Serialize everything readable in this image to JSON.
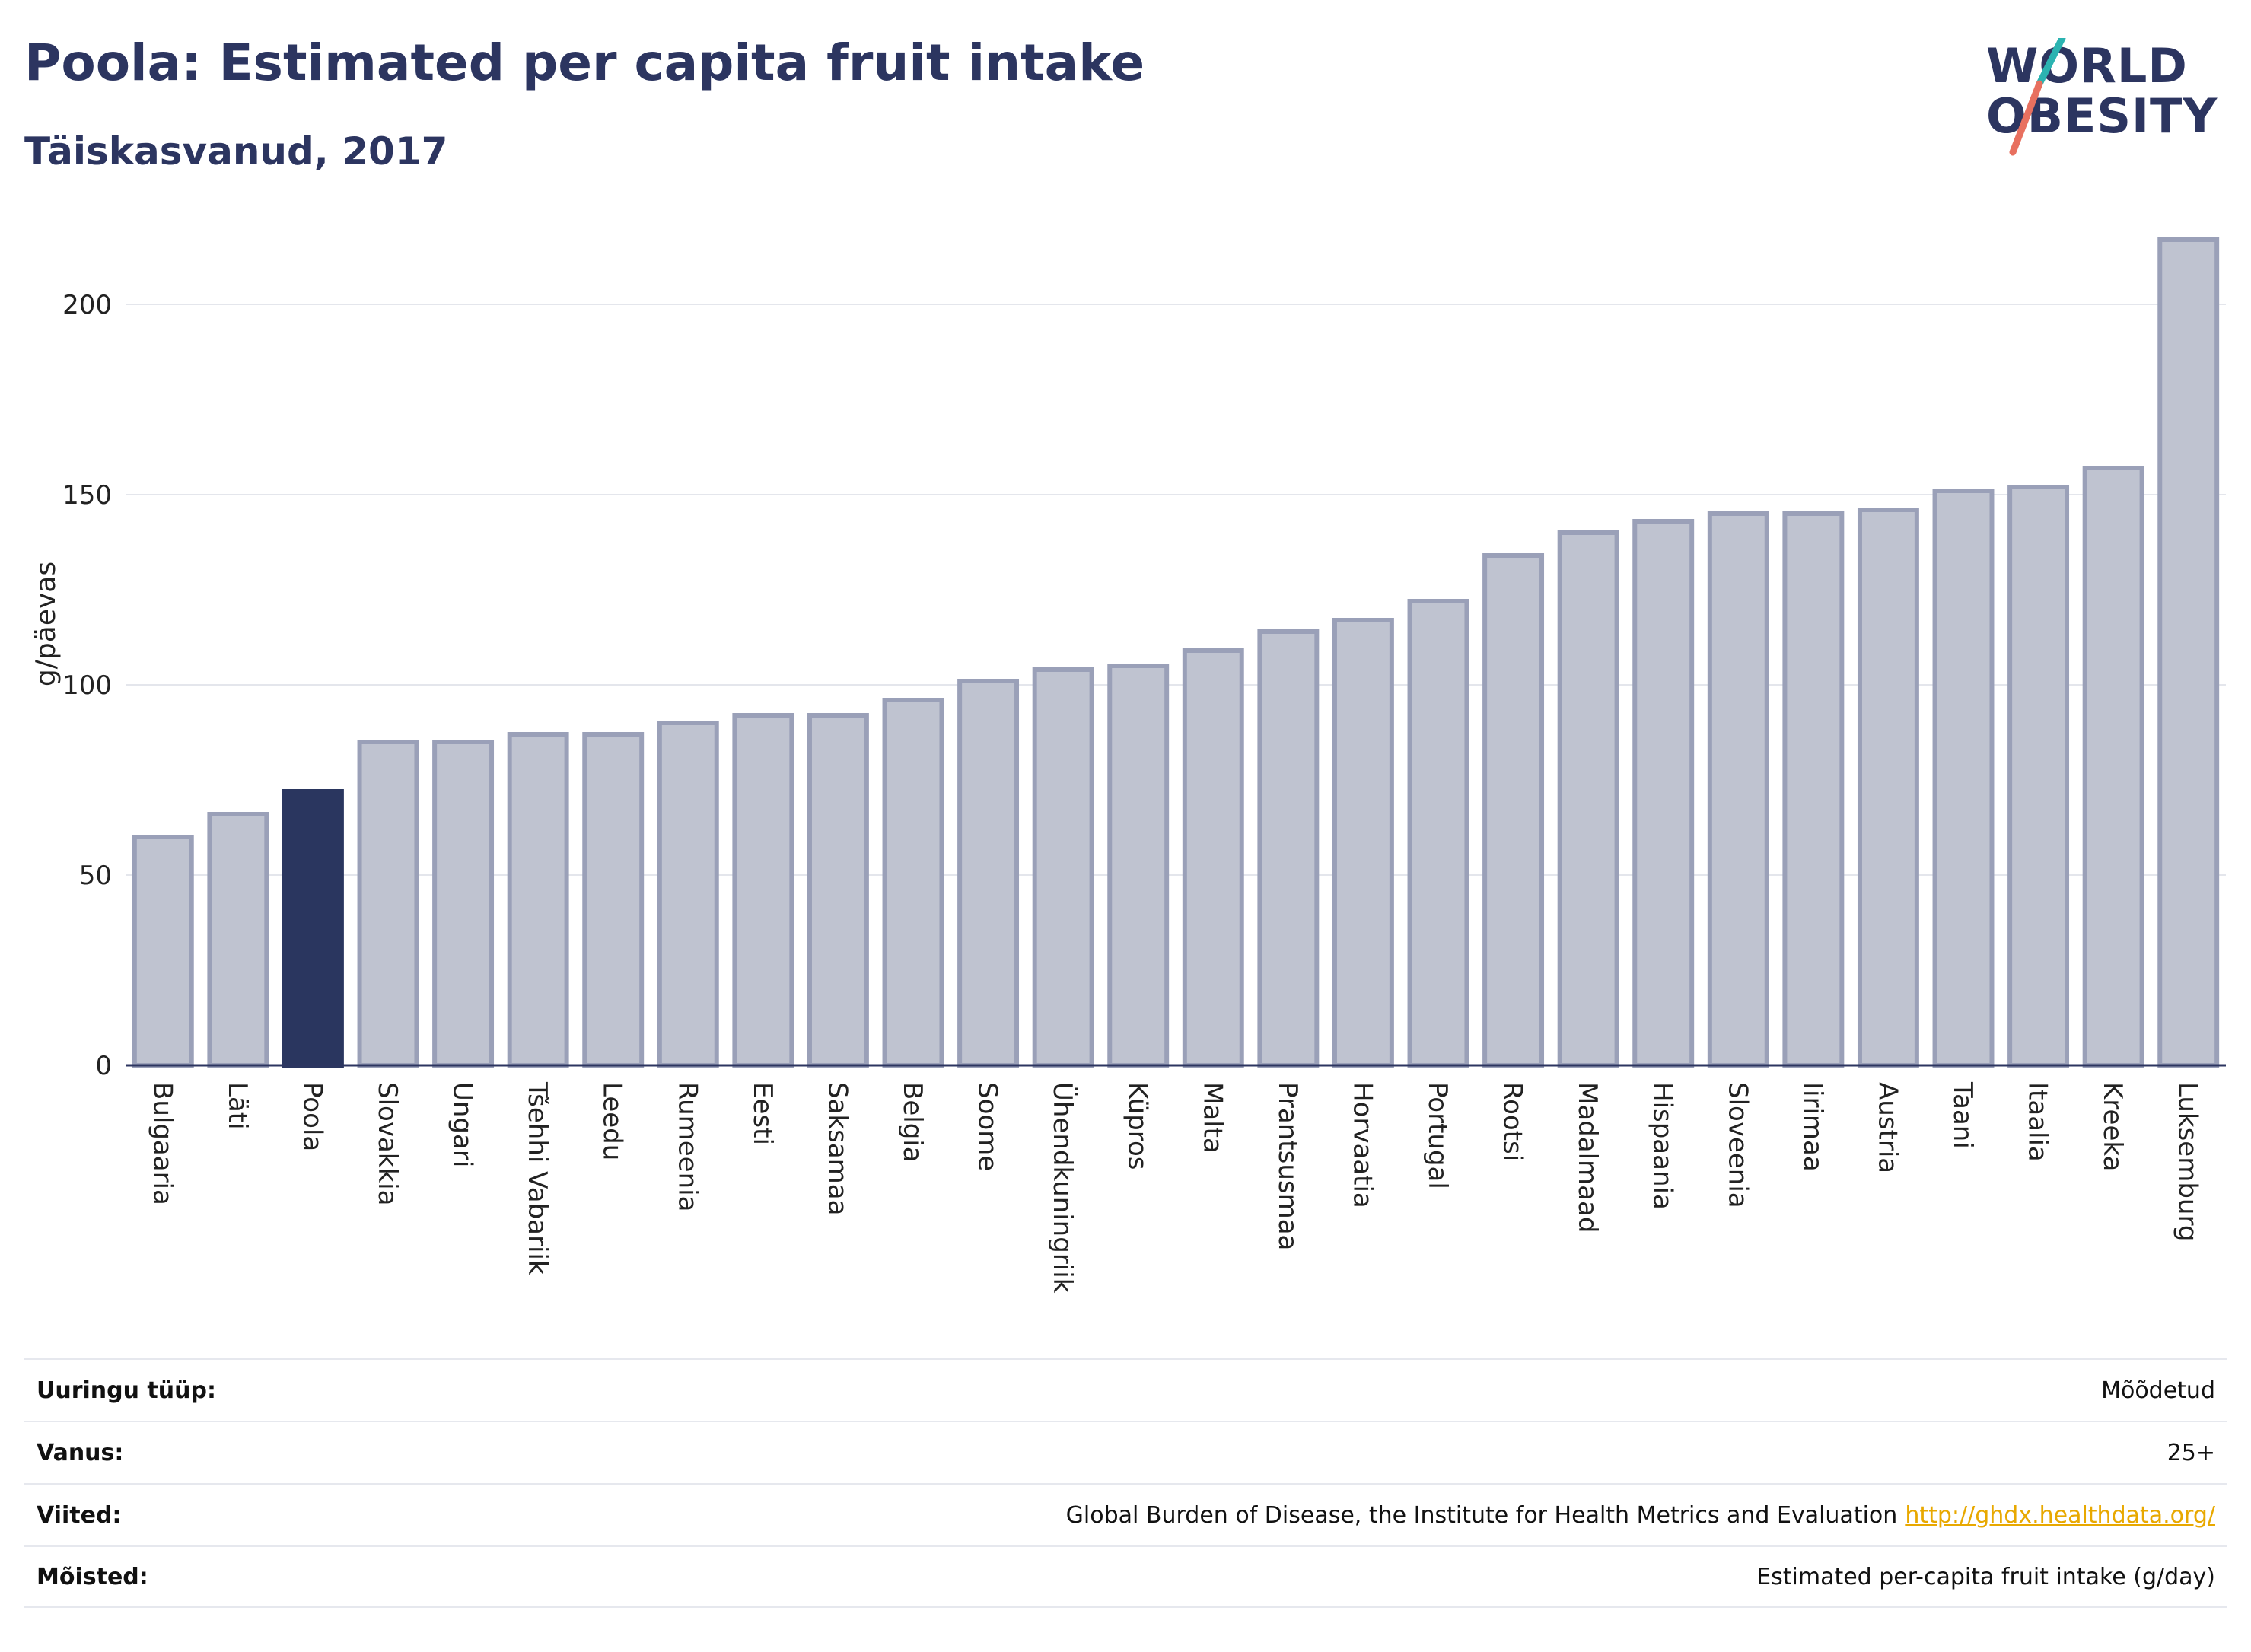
{
  "header": {
    "title": "Poola: Estimated per capita fruit intake",
    "subtitle": "Täiskasvanud, 2017"
  },
  "logo": {
    "line1": "WORLD",
    "line2": "OBESITY",
    "colors": {
      "text": "#2c3560",
      "slash_teal": "#2bb3b1",
      "slash_coral": "#e8705f"
    }
  },
  "chart_data": {
    "type": "bar",
    "ylabel": "g/päevas",
    "xlabel": "",
    "ylim": [
      0,
      220
    ],
    "yticks": [
      0,
      50,
      100,
      150,
      200
    ],
    "grid": true,
    "highlight": "Poola",
    "colors": {
      "bar": "#bfc3d0",
      "bar_border": "#9aa0b8",
      "highlight": "#2a365f",
      "axis": "#2c3560"
    },
    "categories": [
      "Bulgaaria",
      "Läti",
      "Poola",
      "Slovakkia",
      "Ungari",
      "Tšehhi Vabariik",
      "Leedu",
      "Rumeenia",
      "Eesti",
      "Saksamaa",
      "Belgia",
      "Soome",
      "Ühendkuningriik",
      "Küpros",
      "Malta",
      "Prantsusmaa",
      "Horvaatia",
      "Portugal",
      "Rootsi",
      "Madalmaad",
      "Hispaania",
      "Sloveenia",
      "Iirimaa",
      "Austria",
      "Taani",
      "Itaalia",
      "Kreeka",
      "Luksemburg"
    ],
    "values": [
      60,
      66,
      72,
      85,
      85,
      87,
      87,
      90,
      92,
      92,
      96,
      101,
      104,
      105,
      109,
      114,
      117,
      122,
      134,
      140,
      143,
      145,
      145,
      146,
      151,
      152,
      157,
      217
    ]
  },
  "info": [
    {
      "label": "Uuringu tüüp:",
      "value": "Mõõdetud"
    },
    {
      "label": "Vanus:",
      "value": "25+"
    },
    {
      "label": "Viited:",
      "value": "Global Burden of Disease, the Institute for Health Metrics and Evaluation",
      "link": "http://ghdx.healthdata.org/"
    },
    {
      "label": "Mõisted:",
      "value": "Estimated per-capita fruit intake (g/day)"
    }
  ]
}
